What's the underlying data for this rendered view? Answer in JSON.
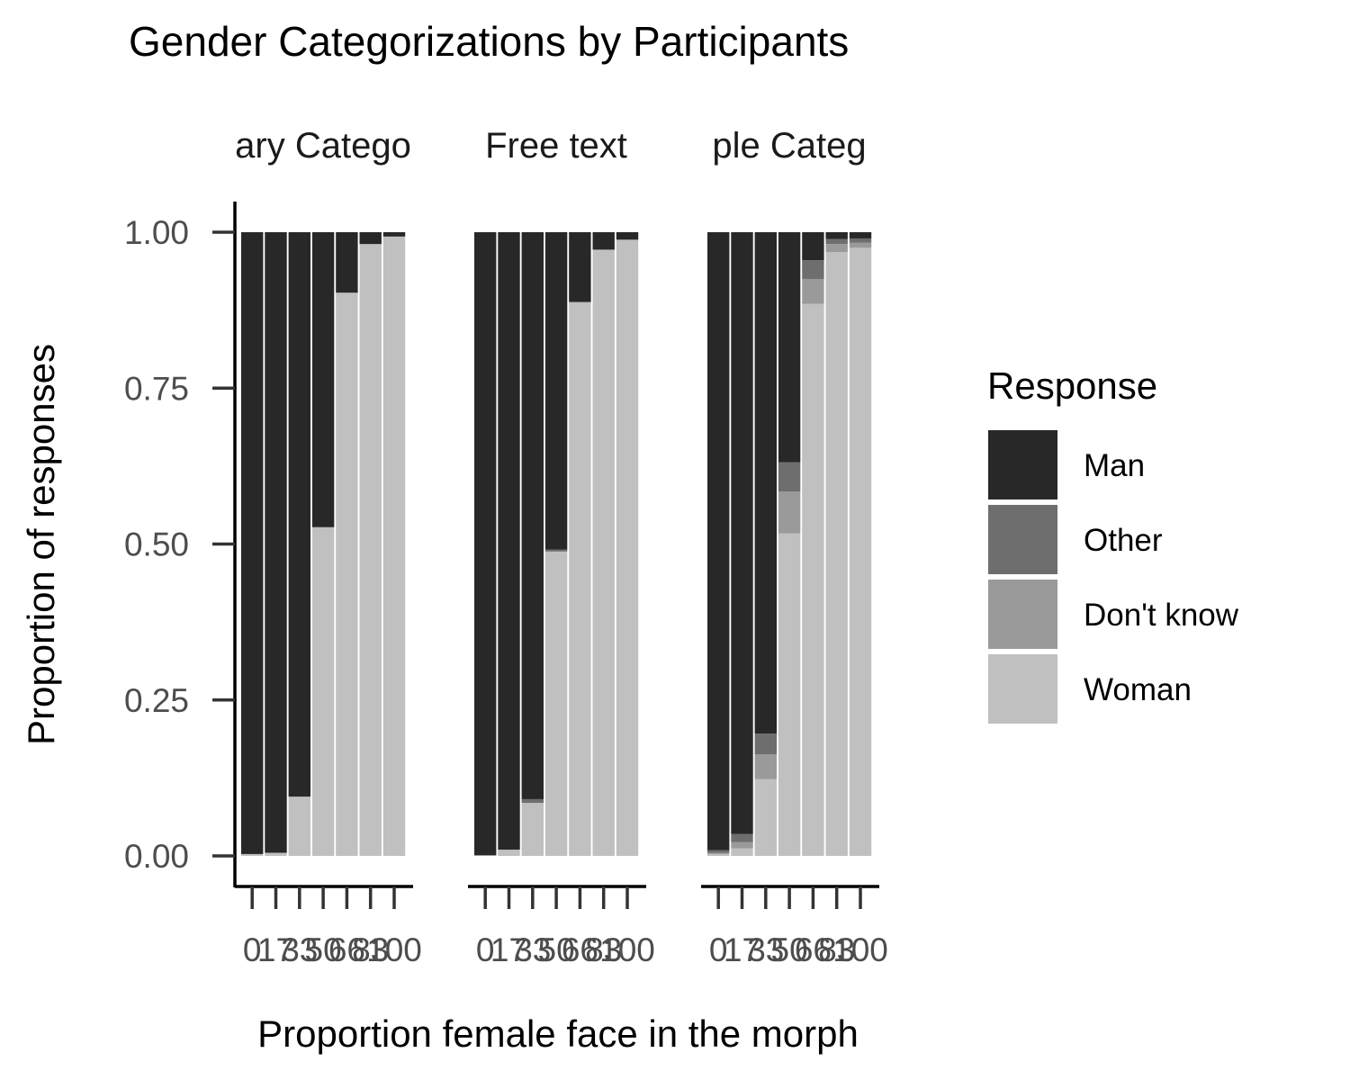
{
  "chart_data": {
    "type": "bar",
    "stacked": true,
    "title": "Gender Categorizations by Participants",
    "xlabel": "Proportion female face in the morph",
    "ylabel": "Proportion of responses",
    "ylim": [
      0,
      1
    ],
    "y_ticks": [
      "0.00",
      "0.25",
      "0.50",
      "0.75",
      "1.00"
    ],
    "categories": [
      "0",
      "17",
      "33",
      "50",
      "66",
      "83",
      "100"
    ],
    "legend": {
      "title": "Response",
      "position": "right",
      "items": [
        {
          "name": "Man",
          "color": "#282828"
        },
        {
          "name": "Other",
          "color": "#6e6e6e"
        },
        {
          "name": "Don't know",
          "color": "#9a9a9a"
        },
        {
          "name": "Woman",
          "color": "#c0c0c0"
        }
      ]
    },
    "stack_order_bottom_to_top": [
      "Woman",
      "Don't know",
      "Other",
      "Man"
    ],
    "panels": [
      {
        "label": "Binary Categories",
        "visible_label": "ary Catego",
        "series": [
          {
            "name": "Woman",
            "values": [
              0.003,
              0.005,
              0.095,
              0.527,
              0.903,
              0.981,
              0.993
            ]
          },
          {
            "name": "Don't know",
            "values": [
              0,
              0,
              0,
              0,
              0,
              0,
              0
            ]
          },
          {
            "name": "Other",
            "values": [
              0,
              0,
              0,
              0,
              0,
              0,
              0
            ]
          },
          {
            "name": "Man",
            "values": [
              0.997,
              0.995,
              0.905,
              0.473,
              0.097,
              0.019,
              0.007
            ]
          }
        ]
      },
      {
        "label": "Free text",
        "visible_label": "Free text",
        "series": [
          {
            "name": "Woman",
            "values": [
              0.001,
              0.01,
              0.085,
              0.488,
              0.888,
              0.972,
              0.988
            ]
          },
          {
            "name": "Don't know",
            "values": [
              0,
              0,
              0,
              0,
              0,
              0,
              0
            ]
          },
          {
            "name": "Other",
            "values": [
              0,
              0,
              0.006,
              0.003,
              0,
              0,
              0
            ]
          },
          {
            "name": "Man",
            "values": [
              0.999,
              0.99,
              0.909,
              0.509,
              0.112,
              0.028,
              0.012
            ]
          }
        ]
      },
      {
        "label": "Multiple Categories",
        "visible_label": "ple Categ",
        "series": [
          {
            "name": "Woman",
            "values": [
              0.003,
              0.012,
              0.123,
              0.517,
              0.885,
              0.968,
              0.975
            ]
          },
          {
            "name": "Don't know",
            "values": [
              0.002,
              0.01,
              0.04,
              0.067,
              0.04,
              0.013,
              0.008
            ]
          },
          {
            "name": "Other",
            "values": [
              0.004,
              0.013,
              0.033,
              0.047,
              0.03,
              0.008,
              0.007
            ]
          },
          {
            "name": "Man",
            "values": [
              0.991,
              0.965,
              0.804,
              0.369,
              0.045,
              0.011,
              0.01
            ]
          }
        ]
      }
    ]
  }
}
